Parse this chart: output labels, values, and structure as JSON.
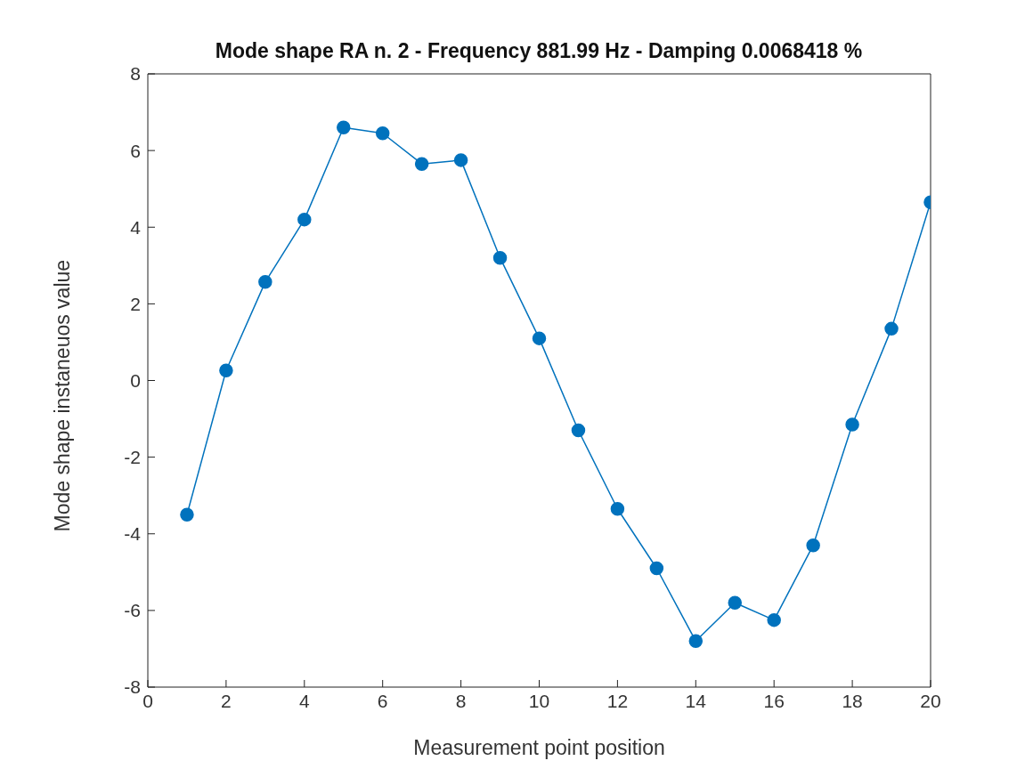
{
  "chart_data": {
    "type": "line",
    "title": "Mode shape RA n. 2 - Frequency 881.99 Hz - Damping 0.0068418 %",
    "xlabel": "Measurement point position",
    "ylabel": "Mode shape instaneuos value",
    "x": [
      1,
      2,
      3,
      4,
      5,
      6,
      7,
      8,
      9,
      10,
      11,
      12,
      13,
      14,
      15,
      16,
      17,
      18,
      19,
      20
    ],
    "series": [
      {
        "color": "#0072bd",
        "values": [
          -3.5,
          0.26,
          2.57,
          4.2,
          6.6,
          6.45,
          5.65,
          5.75,
          3.2,
          1.1,
          -1.3,
          -3.35,
          -4.9,
          -6.8,
          -5.8,
          -6.25,
          -4.3,
          -1.15,
          1.35,
          4.65
        ]
      }
    ],
    "xlim": [
      0,
      20
    ],
    "xticks": [
      0,
      2,
      4,
      6,
      8,
      10,
      12,
      14,
      16,
      18,
      20
    ],
    "ylim": [
      -8,
      8
    ],
    "yticks": [
      -8,
      -6,
      -4,
      -2,
      0,
      2,
      4,
      6,
      8
    ],
    "grid": false,
    "legend": false,
    "marker": "circle",
    "line_style": "solid"
  }
}
